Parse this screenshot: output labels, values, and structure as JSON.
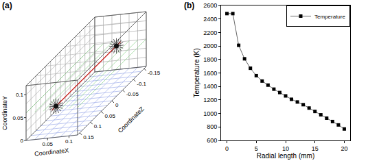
{
  "chart_data": [
    {
      "type": "mesh3d",
      "title": "(a)",
      "x_label": "CoordinateX",
      "y_label": "CoordinateY",
      "z_label": "CoordinateZ",
      "xlim": [
        0,
        0.12
      ],
      "ylim": [
        0,
        0.12
      ],
      "zlim": [
        -0.16,
        0.16
      ],
      "xticks": [
        0.05,
        0.1
      ],
      "yticks": [
        0,
        0.05,
        0.1
      ],
      "zticks": [
        0.15,
        0.1,
        0.05,
        0,
        -0.05,
        -0.1,
        -0.15
      ]
    },
    {
      "type": "line",
      "title": "(b)",
      "x_label": "Radial length (mm)",
      "y_label": "Temperature (K)",
      "x": [
        0,
        1,
        2,
        3,
        4,
        5,
        6,
        7,
        8,
        9,
        10,
        11,
        12,
        13,
        14,
        15,
        16,
        17,
        18,
        19,
        20
      ],
      "series": [
        {
          "name": "Temperature",
          "color": "#000000",
          "marker": "square",
          "values": [
            2480,
            2480,
            2010,
            1810,
            1670,
            1560,
            1480,
            1420,
            1360,
            1310,
            1260,
            1210,
            1170,
            1130,
            1080,
            1030,
            980,
            930,
            880,
            830,
            770
          ]
        }
      ],
      "xlim": [
        -1,
        21
      ],
      "ylim": [
        600,
        2600
      ],
      "xticks": [
        0,
        5,
        10,
        15,
        20
      ],
      "yticks": [
        600,
        800,
        1000,
        1200,
        1400,
        1600,
        1800,
        2000,
        2200,
        2400,
        2600
      ],
      "legend": "upper right"
    }
  ]
}
